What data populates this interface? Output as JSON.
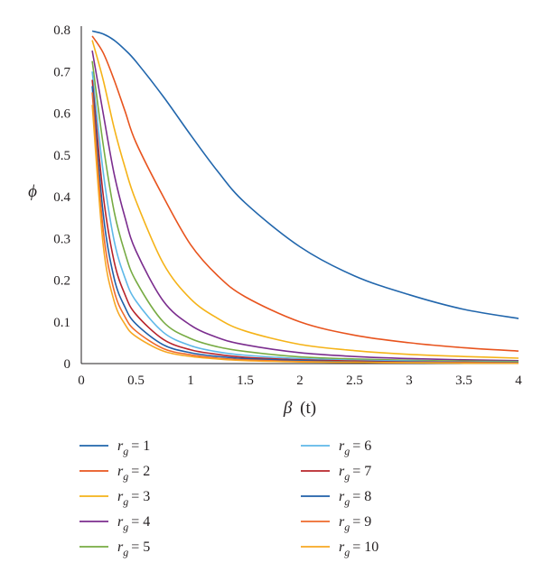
{
  "chart_data": {
    "type": "line",
    "xlabel": "β",
    "xlabel_unit": "(t)",
    "ylabel": "ϕ",
    "xlim": [
      0,
      4
    ],
    "ylim": [
      0,
      0.8
    ],
    "x_ticks": [
      "0",
      "0.5",
      "1",
      "1.5",
      "2",
      "2.5",
      "3",
      "3.5",
      "4"
    ],
    "y_ticks": [
      "0",
      "0.1",
      "0.2",
      "0.3",
      "0.4",
      "0.5",
      "0.6",
      "0.7",
      "0.8"
    ],
    "grid": false,
    "legend": "bottom, two columns",
    "x": [
      0.1,
      0.2,
      0.3,
      0.4,
      0.5,
      0.75,
      1.0,
      1.25,
      1.5,
      2.0,
      2.5,
      3.0,
      3.5,
      4.0
    ],
    "series": [
      {
        "name": "r_g = 1",
        "sym": "r",
        "sub": "g",
        "value": "= 1",
        "color": "#2166ac",
        "values": [
          0.797,
          0.79,
          0.775,
          0.752,
          0.724,
          0.64,
          0.548,
          0.46,
          0.385,
          0.28,
          0.21,
          0.165,
          0.13,
          0.108
        ]
      },
      {
        "name": "r_g = 2",
        "sym": "r",
        "sub": "g",
        "value": "= 2",
        "color": "#e8541e",
        "values": [
          0.785,
          0.745,
          0.68,
          0.605,
          0.53,
          0.4,
          0.285,
          0.21,
          0.16,
          0.1,
          0.068,
          0.05,
          0.038,
          0.03
        ]
      },
      {
        "name": "r_g = 3",
        "sym": "r",
        "sub": "g",
        "value": "= 3",
        "color": "#f5b318",
        "values": [
          0.775,
          0.68,
          0.565,
          0.47,
          0.39,
          0.24,
          0.155,
          0.108,
          0.078,
          0.046,
          0.031,
          0.022,
          0.017,
          0.013
        ]
      },
      {
        "name": "r_g = 4",
        "sym": "r",
        "sub": "g",
        "value": "= 4",
        "color": "#7b2d8e",
        "values": [
          0.75,
          0.6,
          0.455,
          0.35,
          0.27,
          0.15,
          0.092,
          0.062,
          0.045,
          0.026,
          0.017,
          0.012,
          0.009,
          0.007
        ]
      },
      {
        "name": "r_g = 5",
        "sym": "r",
        "sub": "g",
        "value": "= 5",
        "color": "#77ab43",
        "values": [
          0.725,
          0.525,
          0.365,
          0.265,
          0.198,
          0.1,
          0.06,
          0.04,
          0.029,
          0.016,
          0.011,
          0.008,
          0.006,
          0.005
        ]
      },
      {
        "name": "r_g = 6",
        "sym": "r",
        "sub": "g",
        "value": "= 6",
        "color": "#5eb8e8",
        "values": [
          0.7,
          0.46,
          0.295,
          0.205,
          0.15,
          0.075,
          0.043,
          0.028,
          0.02,
          0.012,
          0.008,
          0.006,
          0.004,
          0.003
        ]
      },
      {
        "name": "r_g = 7",
        "sym": "r",
        "sub": "g",
        "value": "= 7",
        "color": "#b8242a",
        "values": [
          0.68,
          0.405,
          0.245,
          0.165,
          0.118,
          0.058,
          0.033,
          0.022,
          0.015,
          0.009,
          0.006,
          0.004,
          0.003,
          0.002
        ]
      },
      {
        "name": "r_g = 8",
        "sym": "r",
        "sub": "g",
        "value": "= 8",
        "color": "#1f5fa8",
        "values": [
          0.665,
          0.36,
          0.205,
          0.135,
          0.095,
          0.045,
          0.026,
          0.017,
          0.012,
          0.007,
          0.004,
          0.003,
          0.002,
          0.002
        ]
      },
      {
        "name": "r_g = 9",
        "sym": "r",
        "sub": "g",
        "value": "= 9",
        "color": "#ee6a2c",
        "values": [
          0.65,
          0.32,
          0.175,
          0.112,
          0.078,
          0.036,
          0.021,
          0.013,
          0.009,
          0.005,
          0.003,
          0.002,
          0.002,
          0.001
        ]
      },
      {
        "name": "r_g = 10",
        "sym": "r",
        "sub": "g",
        "value": "= 10",
        "color": "#f7a823",
        "values": [
          0.62,
          0.285,
          0.15,
          0.094,
          0.065,
          0.03,
          0.017,
          0.011,
          0.007,
          0.004,
          0.003,
          0.002,
          0.001,
          0.001
        ]
      }
    ]
  }
}
